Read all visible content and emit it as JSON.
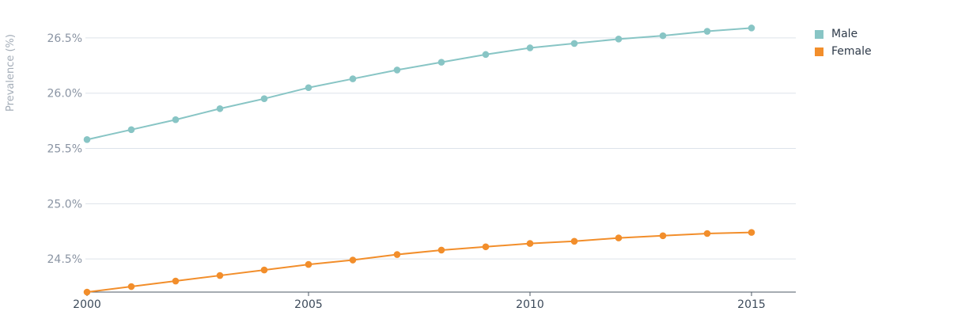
{
  "chart_data": {
    "type": "line",
    "title": "",
    "xlabel": "",
    "ylabel": "Prevalence (%)",
    "x": [
      2000,
      2001,
      2002,
      2003,
      2004,
      2005,
      2006,
      2007,
      2008,
      2009,
      2010,
      2011,
      2012,
      2013,
      2014,
      2015
    ],
    "xlim": [
      2000,
      2016
    ],
    "x_ticks": [
      2000,
      2005,
      2010,
      2015
    ],
    "x_tick_labels": [
      "2000",
      "2005",
      "2010",
      "2015"
    ],
    "ylim": [
      24.2,
      26.7
    ],
    "y_ticks": [
      24.5,
      25.0,
      25.5,
      26.0,
      26.5
    ],
    "y_tick_labels": [
      "24.5%",
      "25.0%",
      "25.5%",
      "26.0%",
      "26.5%"
    ],
    "grid": true,
    "legend_position": "top-right",
    "series": [
      {
        "name": "Male",
        "color": "#88c5c5",
        "values": [
          25.58,
          25.67,
          25.76,
          25.86,
          25.95,
          26.05,
          26.13,
          26.21,
          26.28,
          26.35,
          26.41,
          26.45,
          26.49,
          26.52,
          26.56,
          26.59
        ]
      },
      {
        "name": "Female",
        "color": "#f28e2b",
        "values": [
          24.2,
          24.25,
          24.3,
          24.35,
          24.4,
          24.45,
          24.49,
          24.54,
          24.58,
          24.61,
          24.64,
          24.66,
          24.69,
          24.71,
          24.73,
          24.74
        ]
      }
    ]
  }
}
